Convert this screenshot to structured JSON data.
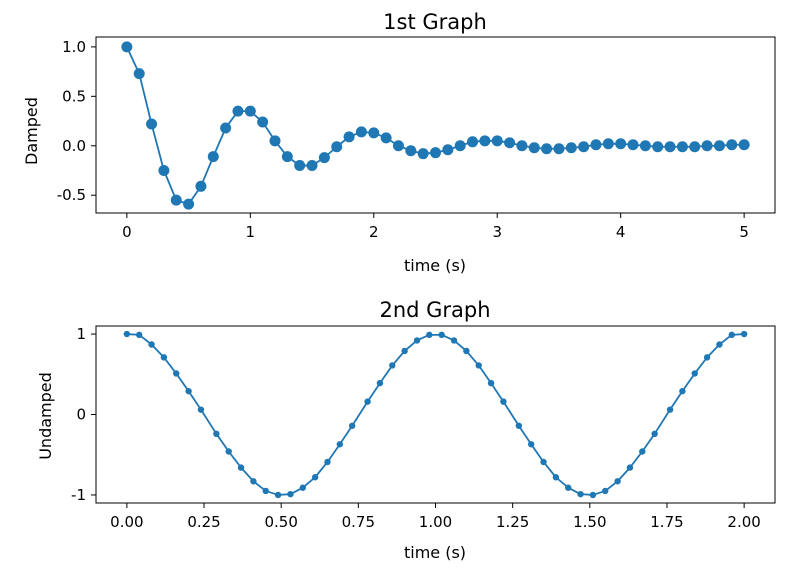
{
  "chart_data": [
    {
      "type": "line",
      "title": "1st Graph",
      "xlabel": "time (s)",
      "ylabel": "Damped",
      "xlim": [
        -0.25,
        5.25
      ],
      "ylim": [
        -0.68,
        1.1
      ],
      "xticks": [
        0,
        1,
        2,
        3,
        4,
        5
      ],
      "xtick_labels": [
        "0",
        "1",
        "2",
        "3",
        "4",
        "5"
      ],
      "yticks": [
        1.0,
        0.5,
        0.0,
        -0.5
      ],
      "ytick_labels": [
        "1.0",
        "0.5",
        "0.0",
        "-0.5"
      ],
      "grid": false,
      "color": "#1f77b4",
      "marker": "o",
      "series": [
        {
          "x": [
            0,
            0.1,
            0.2,
            0.3,
            0.4,
            0.5,
            0.6,
            0.7,
            0.8,
            0.9,
            1.0,
            1.1,
            1.2,
            1.3,
            1.4,
            1.5,
            1.6,
            1.7,
            1.8,
            1.9,
            2.0,
            2.1,
            2.2,
            2.3,
            2.4,
            2.5,
            2.6,
            2.7,
            2.8,
            2.9,
            3.0,
            3.1,
            3.2,
            3.3,
            3.4,
            3.5,
            3.6,
            3.7,
            3.8,
            3.9,
            4.0,
            4.1,
            4.2,
            4.3,
            4.4,
            4.5,
            4.6,
            4.7,
            4.8,
            4.9,
            5.0
          ],
          "y": [
            1.0,
            0.73,
            0.22,
            -0.25,
            -0.55,
            -0.59,
            -0.41,
            -0.11,
            0.18,
            0.35,
            0.35,
            0.24,
            0.05,
            -0.11,
            -0.2,
            -0.2,
            -0.12,
            -0.01,
            0.09,
            0.14,
            0.13,
            0.08,
            0.0,
            -0.05,
            -0.08,
            -0.07,
            -0.04,
            0.0,
            0.04,
            0.05,
            0.05,
            0.03,
            0.0,
            -0.02,
            -0.03,
            -0.03,
            -0.02,
            -0.01,
            0.01,
            0.02,
            0.02,
            0.01,
            0.0,
            -0.01,
            -0.01,
            -0.01,
            -0.01,
            0.0,
            0.0,
            0.01,
            0.01
          ]
        }
      ]
    },
    {
      "type": "line",
      "title": "2nd Graph",
      "xlabel": "time (s)",
      "ylabel": "Undamped",
      "xlim": [
        -0.1,
        2.1
      ],
      "ylim": [
        -1.1,
        1.1
      ],
      "xticks": [
        0,
        0.25,
        0.5,
        0.75,
        1.0,
        1.25,
        1.5,
        1.75,
        2.0
      ],
      "xtick_labels": [
        "0.00",
        "0.25",
        "0.50",
        "0.75",
        "1.00",
        "1.25",
        "1.50",
        "1.75",
        "2.00"
      ],
      "yticks": [
        1,
        0,
        -1
      ],
      "ytick_labels": [
        "1",
        "0",
        "-1"
      ],
      "grid": false,
      "color": "#1f77b4",
      "marker": ".",
      "series": [
        {
          "x": [
            0.0,
            0.04,
            0.08,
            0.12,
            0.16,
            0.2,
            0.24,
            0.29,
            0.33,
            0.37,
            0.41,
            0.45,
            0.49,
            0.53,
            0.57,
            0.61,
            0.65,
            0.69,
            0.73,
            0.78,
            0.82,
            0.86,
            0.9,
            0.94,
            0.98,
            1.02,
            1.06,
            1.1,
            1.14,
            1.18,
            1.22,
            1.27,
            1.31,
            1.35,
            1.39,
            1.43,
            1.47,
            1.51,
            1.55,
            1.59,
            1.63,
            1.67,
            1.71,
            1.76,
            1.8,
            1.84,
            1.88,
            1.92,
            1.96,
            2.0
          ],
          "y": [
            1.0,
            0.99,
            0.87,
            0.71,
            0.51,
            0.29,
            0.06,
            -0.24,
            -0.46,
            -0.66,
            -0.83,
            -0.95,
            -1.0,
            -0.99,
            -0.91,
            -0.78,
            -0.59,
            -0.37,
            -0.14,
            0.16,
            0.39,
            0.61,
            0.79,
            0.92,
            0.99,
            0.99,
            0.92,
            0.79,
            0.61,
            0.39,
            0.16,
            -0.14,
            -0.37,
            -0.59,
            -0.78,
            -0.91,
            -0.99,
            -1.0,
            -0.95,
            -0.83,
            -0.66,
            -0.46,
            -0.24,
            0.06,
            0.29,
            0.51,
            0.71,
            0.87,
            0.99,
            1.0
          ]
        }
      ]
    }
  ]
}
